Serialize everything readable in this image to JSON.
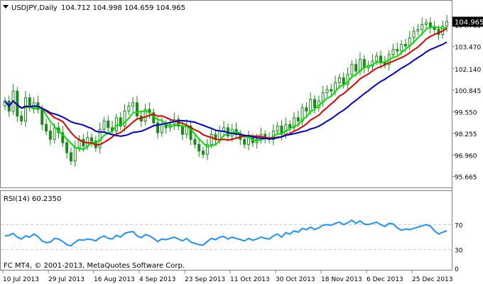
{
  "header": {
    "symbol_title": "USDJPY,Daily",
    "ohlc": "104.712 104.998 104.659 104.965",
    "triangle_icon": "dropdown-triangle-icon"
  },
  "colors": {
    "candle": "#1a8a1a",
    "ma_fast": "#00e000",
    "ma_mid": "#e00000",
    "ma_slow": "#0000c8",
    "rsi": "#1e90ff",
    "grid": "#c8c8c8",
    "axis_text": "#000000",
    "price_tag_bg": "#000000",
    "price_tag_text": "#ffffff"
  },
  "chart_data": [
    {
      "type": "candlestick",
      "title": "USDJPY,Daily",
      "ylim": [
        95.1,
        105.5
      ],
      "y_ticks": [
        95.665,
        96.96,
        98.255,
        99.55,
        100.845,
        102.14,
        103.47,
        104.765
      ],
      "current_price": 104.965,
      "x_ticks": [
        "10 Jul 2013",
        "29 Jul 2013",
        "16 Aug 2013",
        "4 Sep 2013",
        "23 Sep 2013",
        "11 Oct 2013",
        "30 Oct 2013",
        "18 Nov 2013",
        "6 Dec 2013",
        "25 Dec 2013"
      ],
      "series": [
        {
          "name": "close",
          "values": [
            100.2,
            99.6,
            100.8,
            99.3,
            99.0,
            100.4,
            99.8,
            100.1,
            99.7,
            98.8,
            98.4,
            97.9,
            98.6,
            98.3,
            97.7,
            97.1,
            96.6,
            97.4,
            97.9,
            97.5,
            98.0,
            97.8,
            97.4,
            98.5,
            99.0,
            98.6,
            98.4,
            99.2,
            98.7,
            99.6,
            99.9,
            100.1,
            99.3,
            99.0,
            99.7,
            99.5,
            98.9,
            98.3,
            98.8,
            98.6,
            98.8,
            99.1,
            98.7,
            98.2,
            98.7,
            97.9,
            97.6,
            97.2,
            97.0,
            97.6,
            98.2,
            97.9,
            98.4,
            98.6,
            98.1,
            98.5,
            98.2,
            97.9,
            97.6,
            98.0,
            97.7,
            97.9,
            98.2,
            98.0,
            97.9,
            98.4,
            98.7,
            98.2,
            98.8,
            98.6,
            99.2,
            99.0,
            99.8,
            99.6,
            100.3,
            99.8,
            100.2,
            100.7,
            100.9,
            100.8,
            101.3,
            101.6,
            101.2,
            101.8,
            102.4,
            102.0,
            102.7,
            102.2,
            102.3,
            102.6,
            102.9,
            102.5,
            102.4,
            103.0,
            103.3,
            103.2,
            103.6,
            103.5,
            104.0,
            104.4,
            104.5,
            104.8,
            104.9,
            104.6,
            104.5,
            104.2,
            104.7,
            104.965
          ]
        }
      ],
      "indicators": [
        {
          "name": "MA fast",
          "color": "#00e000"
        },
        {
          "name": "MA mid",
          "color": "#e00000"
        },
        {
          "name": "MA slow",
          "color": "#0000c8"
        }
      ]
    },
    {
      "type": "line",
      "title": "RSI(14) 60.2350",
      "ylim": [
        0,
        100
      ],
      "y_ticks": [
        0,
        30,
        70
      ],
      "levels": [
        30,
        70
      ],
      "series": [
        {
          "name": "RSI(14)",
          "values": [
            52,
            53,
            56,
            50,
            47,
            52,
            50,
            55,
            51,
            44,
            41,
            42,
            48,
            47,
            43,
            38,
            36,
            42,
            46,
            45,
            47,
            46,
            44,
            49,
            52,
            48,
            47,
            53,
            50,
            56,
            58,
            59,
            52,
            49,
            54,
            52,
            48,
            43,
            47,
            46,
            48,
            50,
            47,
            44,
            48,
            42,
            40,
            38,
            37,
            43,
            48,
            46,
            50,
            51,
            47,
            50,
            48,
            46,
            44,
            48,
            45,
            47,
            50,
            48,
            47,
            52,
            55,
            50,
            57,
            55,
            60,
            58,
            64,
            62,
            66,
            62,
            65,
            69,
            70,
            69,
            72,
            74,
            70,
            73,
            77,
            72,
            76,
            71,
            70,
            72,
            74,
            70,
            67,
            72,
            71,
            65,
            61,
            63,
            62,
            64,
            66,
            68,
            70,
            68,
            60,
            55,
            58,
            60.235
          ]
        }
      ]
    }
  ],
  "footer": {
    "copyright": "FC MT4, © 2001-2013, MetaQuotes Software Corp."
  }
}
